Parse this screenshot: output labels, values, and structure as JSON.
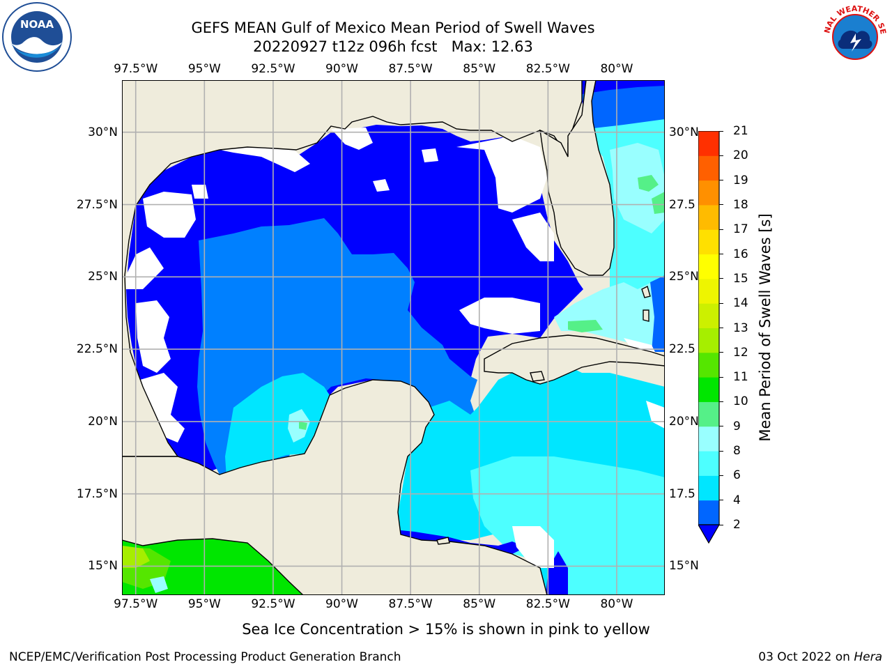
{
  "header": {
    "title_line1": "GEFS MEAN Gulf of Mexico Mean Period of Swell Waves",
    "title_line2": "20220927 t12z 096h fcst   Max: 12.63"
  },
  "logos": {
    "left": "NOAA",
    "right": "NATIONAL WEATHER SERVICE"
  },
  "map": {
    "lon_ticks": [
      "97.5°W",
      "95°W",
      "92.5°W",
      "90°W",
      "87.5°W",
      "85°W",
      "82.5°W",
      "80°W"
    ],
    "lat_ticks_left": [
      "30°N",
      "27.5°N",
      "25°N",
      "22.5°N",
      "20°N",
      "17.5°N",
      "15°N"
    ],
    "lat_ticks_right": [
      "30°N",
      "27.5",
      "25°N",
      "22.5",
      "20°N",
      "17.5",
      "15°N"
    ],
    "extent": {
      "lon_min": -98.0,
      "lon_max": -78.25,
      "lat_min": 14.0,
      "lat_max": 31.8
    },
    "colors": {
      "land": "#efecdc",
      "missing": "#ffffff",
      "grid": "#b0b0b0"
    }
  },
  "colorbar": {
    "title": "Mean Period of Swell Waves [s]",
    "levels": [
      "2",
      "4",
      "6",
      "8",
      "9",
      "10",
      "11",
      "12",
      "13",
      "14",
      "15",
      "16",
      "17",
      "18",
      "19",
      "20",
      "21"
    ],
    "colors": [
      "#0066ff",
      "#00e6ff",
      "#4dffff",
      "#99ffff",
      "#55f088",
      "#00e600",
      "#55e600",
      "#a6ee00",
      "#ccf000",
      "#eef500",
      "#ffff00",
      "#ffe000",
      "#ffbb00",
      "#ff9000",
      "#ff6000",
      "#ff3000"
    ],
    "under_color": "#0000ff"
  },
  "notes": {
    "sea_ice": "Sea Ice Concentration > 15% is shown in pink to yellow"
  },
  "footer": {
    "left": "NCEP/EMC/Verification Post Processing Product Generation Branch",
    "right_date": "03 Oct 2022 on ",
    "right_machine": "Hera"
  }
}
